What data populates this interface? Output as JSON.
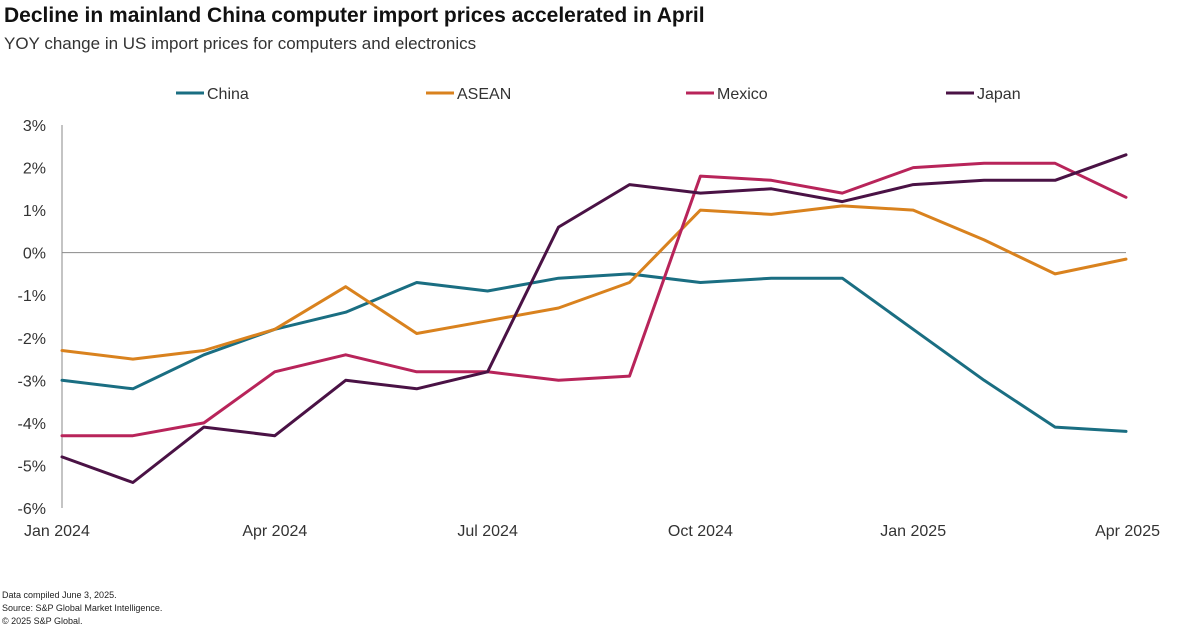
{
  "title": "Decline in mainland China computer import prices accelerated in April",
  "subtitle": "YOY change in US import prices for computers and electronics",
  "footer": {
    "line1": "Data compiled June 3, 2025.",
    "line2": "Source: S&P Global Market Intelligence.",
    "line3": "© 2025 S&P Global."
  },
  "colors": {
    "China": "#1a6e82",
    "ASEAN": "#d9821e",
    "Mexico": "#b8245a",
    "Japan": "#4a1245",
    "axis": "#8a8a8a",
    "text": "#333333"
  },
  "chart_data": {
    "type": "line",
    "x": [
      "2024-01",
      "2024-02",
      "2024-03",
      "2024-04",
      "2024-05",
      "2024-06",
      "2024-07",
      "2024-08",
      "2024-09",
      "2024-10",
      "2024-11",
      "2024-12",
      "2025-01",
      "2025-02",
      "2025-03",
      "2025-04"
    ],
    "x_tick_labels": [
      "Jan 2024",
      "Apr 2024",
      "Jul 2024",
      "Oct 2024",
      "Jan 2025",
      "Apr 2025"
    ],
    "x_tick_index": [
      0,
      3,
      6,
      9,
      12,
      15
    ],
    "y_ticks": [
      3,
      2,
      1,
      0,
      -1,
      -2,
      -3,
      -4,
      -5,
      -6
    ],
    "y_tick_labels": [
      "3%",
      "2%",
      "1%",
      "0%",
      "-1%",
      "-2%",
      "-3%",
      "-4%",
      "-5%",
      "-6%"
    ],
    "ylim": [
      -6,
      3
    ],
    "unit": "%",
    "legend_position": "top",
    "grid": false,
    "series": [
      {
        "name": "China",
        "values": [
          -3.0,
          -3.2,
          -2.4,
          -1.8,
          -1.4,
          -0.7,
          -0.9,
          -0.6,
          -0.5,
          -0.7,
          -0.6,
          -0.6,
          -1.8,
          -3.0,
          -4.1,
          -4.2
        ]
      },
      {
        "name": "ASEAN",
        "values": [
          -2.3,
          -2.5,
          -2.3,
          -1.8,
          -0.8,
          -1.9,
          -1.6,
          -1.3,
          -0.7,
          1.0,
          0.9,
          1.1,
          1.0,
          0.3,
          -0.5,
          -0.15
        ]
      },
      {
        "name": "Mexico",
        "values": [
          -4.3,
          -4.3,
          -4.0,
          -2.8,
          -2.4,
          -2.8,
          -2.8,
          -3.0,
          -2.9,
          1.8,
          1.7,
          1.4,
          2.0,
          2.1,
          2.1,
          1.3
        ]
      },
      {
        "name": "Japan",
        "values": [
          -4.8,
          -5.4,
          -4.1,
          -4.3,
          -3.0,
          -3.2,
          -2.8,
          0.6,
          1.6,
          1.4,
          1.5,
          1.2,
          1.6,
          1.7,
          1.7,
          2.3
        ]
      }
    ]
  }
}
